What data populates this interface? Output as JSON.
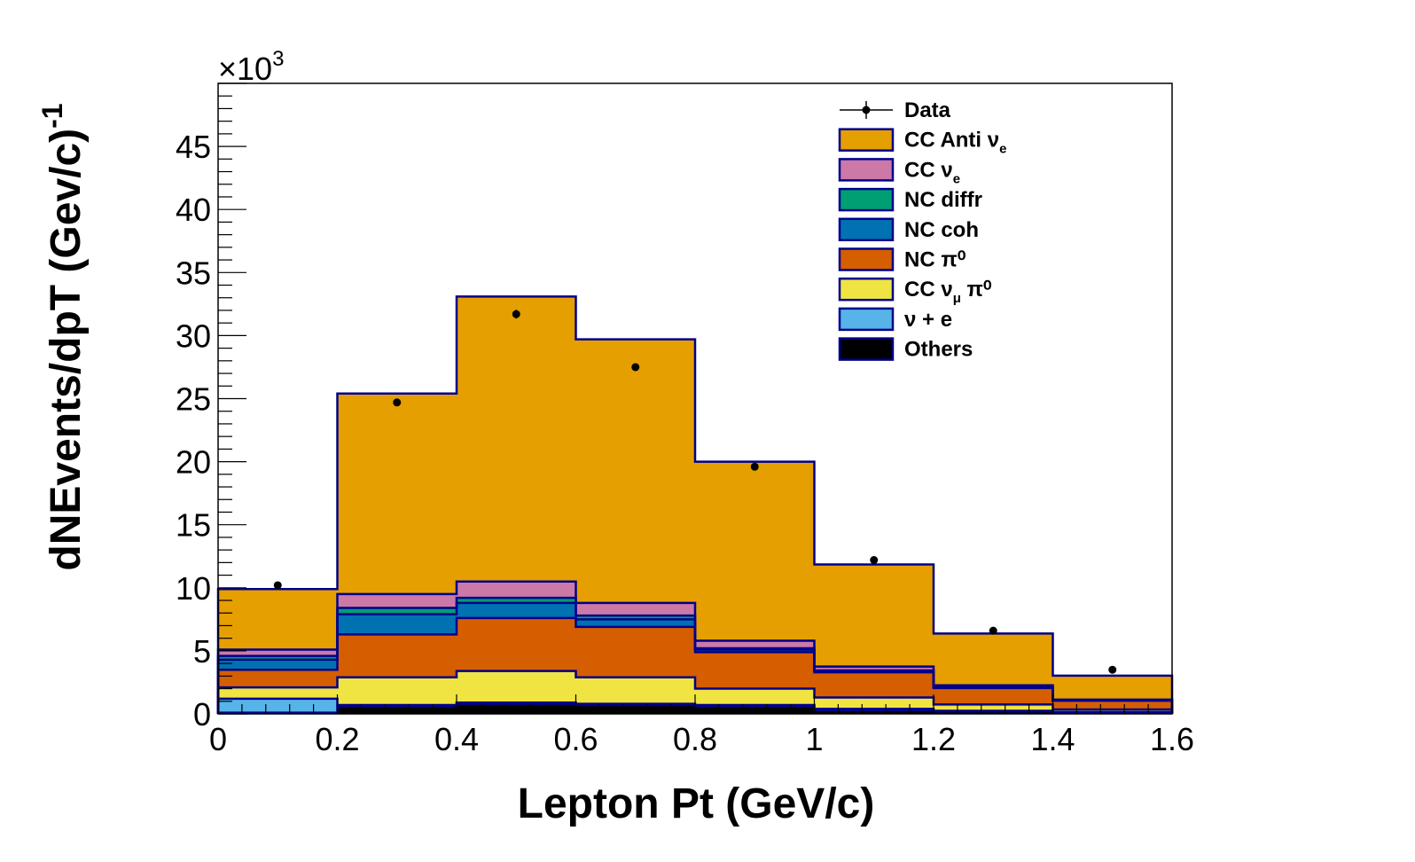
{
  "chart_data": {
    "type": "bar",
    "stacked": true,
    "bin_edges": [
      0,
      0.2,
      0.4,
      0.6,
      0.8,
      1,
      1.2,
      1.4,
      1.6
    ],
    "xlabel": "Lepton Pt (GeV/c)",
    "ylabel": "dNEvents/dpT (Gev/c)",
    "ylabel_sup": "-1",
    "y_exponent_label": "×10",
    "y_exponent_sup": "3",
    "xlim": [
      0,
      1.6
    ],
    "ylim": [
      0,
      50
    ],
    "x_ticks": [
      "0",
      "0.2",
      "0.4",
      "0.6",
      "0.8",
      "1",
      "1.2",
      "1.4",
      "1.6"
    ],
    "y_ticks": [
      "0",
      "5",
      "10",
      "15",
      "20",
      "25",
      "30",
      "35",
      "40",
      "45"
    ],
    "legend_position": "top-right",
    "series": [
      {
        "name": "Others",
        "sub": "",
        "color": "#000000",
        "values": [
          0.1,
          0.6,
          0.8,
          0.7,
          0.6,
          0.3,
          0.2,
          0.1
        ]
      },
      {
        "name": "ν + e",
        "sub": "",
        "color": "#56b4e9",
        "values": [
          1.1,
          0.1,
          0.1,
          0.1,
          0.1,
          0.1,
          0.05,
          0.05
        ]
      },
      {
        "name": "CC  ν",
        "sub": "μ",
        "suffix": "  π⁰",
        "color": "#f0e442",
        "values": [
          0.9,
          2.2,
          2.5,
          2.1,
          1.3,
          0.9,
          0.5,
          0.2
        ]
      },
      {
        "name": "NC  π⁰",
        "sub": "",
        "color": "#d55e00",
        "values": [
          1.4,
          3.4,
          4.2,
          4.0,
          2.9,
          2.0,
          1.3,
          0.7
        ]
      },
      {
        "name": "NC coh",
        "sub": "",
        "color": "#0072b2",
        "values": [
          0.8,
          1.6,
          1.2,
          0.6,
          0.2,
          0.1,
          0.05,
          0.02
        ]
      },
      {
        "name": "NC diffr",
        "sub": "",
        "color": "#009e73",
        "values": [
          0.3,
          0.5,
          0.4,
          0.3,
          0.1,
          0.05,
          0.02,
          0.01
        ]
      },
      {
        "name": "CC  ν",
        "sub": "e",
        "color": "#cc79a7",
        "values": [
          0.5,
          1.1,
          1.3,
          1.0,
          0.6,
          0.3,
          0.15,
          0.05
        ]
      },
      {
        "name": "CC Anti ν",
        "sub": "e",
        "color": "#e69f00",
        "values": [
          4.8,
          15.9,
          22.6,
          20.9,
          14.2,
          8.1,
          4.1,
          1.9
        ]
      }
    ],
    "data": {
      "name": "Data",
      "x": [
        0.1,
        0.3,
        0.5,
        0.7,
        0.9,
        1.1,
        1.3,
        1.5
      ],
      "y": [
        10.2,
        24.7,
        31.7,
        27.5,
        19.6,
        12.2,
        6.6,
        3.5
      ],
      "err": [
        0.15,
        0.3,
        0.35,
        0.3,
        0.25,
        0.2,
        0.15,
        0.1
      ]
    },
    "line_color": "#00008b"
  }
}
